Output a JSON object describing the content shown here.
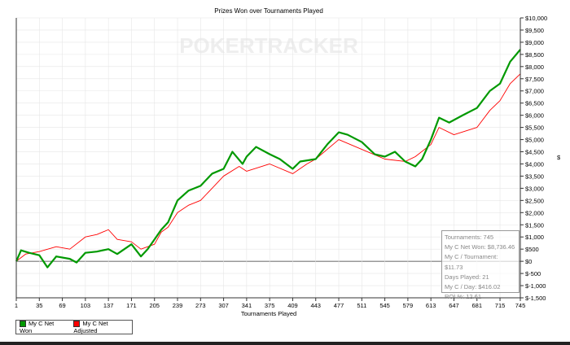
{
  "chart_data": {
    "type": "line",
    "title": "Prizes Won over Tournaments Played",
    "xlabel": "Tournaments Played",
    "ylabel": "$",
    "xlim": [
      1,
      745
    ],
    "ylim": [
      -1500,
      10000
    ],
    "x_ticks": [
      "1",
      "35",
      "69",
      "103",
      "137",
      "171",
      "205",
      "239",
      "273",
      "307",
      "341",
      "375",
      "409",
      "443",
      "477",
      "511",
      "545",
      "579",
      "613",
      "647",
      "681",
      "715",
      "745"
    ],
    "y_ticks": [
      "$-1,500",
      "$-1,000",
      "$-500",
      "$0",
      "$500",
      "$1,000",
      "$1,500",
      "$2,000",
      "$2,500",
      "$3,000",
      "$3,500",
      "$4,000",
      "$4,500",
      "$5,000",
      "$5,500",
      "$6,000",
      "$6,500",
      "$7,000",
      "$7,500",
      "$8,000",
      "$8,500",
      "$9,000",
      "$9,500",
      "$10,000"
    ],
    "grid": true,
    "legend_placement": "bottom-left",
    "series": [
      {
        "name": "My C Net Adjusted",
        "color": "#ff0000",
        "points": [
          [
            1,
            0
          ],
          [
            15,
            300
          ],
          [
            35,
            400
          ],
          [
            60,
            600
          ],
          [
            80,
            500
          ],
          [
            103,
            1000
          ],
          [
            120,
            1100
          ],
          [
            137,
            1300
          ],
          [
            150,
            900
          ],
          [
            171,
            800
          ],
          [
            185,
            500
          ],
          [
            205,
            700
          ],
          [
            215,
            1200
          ],
          [
            225,
            1400
          ],
          [
            239,
            2000
          ],
          [
            255,
            2300
          ],
          [
            273,
            2500
          ],
          [
            290,
            3000
          ],
          [
            307,
            3500
          ],
          [
            330,
            3900
          ],
          [
            341,
            3700
          ],
          [
            375,
            4000
          ],
          [
            409,
            3600
          ],
          [
            430,
            4000
          ],
          [
            443,
            4200
          ],
          [
            477,
            5000
          ],
          [
            511,
            4600
          ],
          [
            545,
            4200
          ],
          [
            575,
            4100
          ],
          [
            590,
            4300
          ],
          [
            613,
            4800
          ],
          [
            625,
            5500
          ],
          [
            647,
            5200
          ],
          [
            681,
            5500
          ],
          [
            700,
            6200
          ],
          [
            715,
            6600
          ],
          [
            730,
            7300
          ],
          [
            745,
            7700
          ]
        ]
      },
      {
        "name": "My C Net Won",
        "color": "#009900",
        "points": [
          [
            1,
            0
          ],
          [
            8,
            450
          ],
          [
            20,
            350
          ],
          [
            35,
            250
          ],
          [
            47,
            -250
          ],
          [
            60,
            200
          ],
          [
            80,
            100
          ],
          [
            90,
            -50
          ],
          [
            103,
            350
          ],
          [
            120,
            400
          ],
          [
            137,
            500
          ],
          [
            150,
            300
          ],
          [
            171,
            700
          ],
          [
            185,
            200
          ],
          [
            195,
            500
          ],
          [
            205,
            900
          ],
          [
            215,
            1300
          ],
          [
            225,
            1600
          ],
          [
            239,
            2500
          ],
          [
            255,
            2900
          ],
          [
            273,
            3100
          ],
          [
            290,
            3600
          ],
          [
            307,
            3800
          ],
          [
            320,
            4500
          ],
          [
            335,
            4000
          ],
          [
            341,
            4300
          ],
          [
            355,
            4700
          ],
          [
            375,
            4400
          ],
          [
            390,
            4200
          ],
          [
            409,
            3800
          ],
          [
            420,
            4100
          ],
          [
            443,
            4200
          ],
          [
            460,
            4800
          ],
          [
            477,
            5300
          ],
          [
            490,
            5200
          ],
          [
            511,
            4900
          ],
          [
            530,
            4400
          ],
          [
            545,
            4300
          ],
          [
            560,
            4500
          ],
          [
            575,
            4100
          ],
          [
            590,
            3900
          ],
          [
            600,
            4200
          ],
          [
            613,
            5000
          ],
          [
            625,
            5900
          ],
          [
            640,
            5700
          ],
          [
            660,
            6000
          ],
          [
            681,
            6300
          ],
          [
            700,
            7000
          ],
          [
            715,
            7300
          ],
          [
            730,
            8200
          ],
          [
            745,
            8700
          ]
        ]
      }
    ]
  },
  "watermark": "POKERTRACKER",
  "stats": {
    "tournaments": "Tournaments: 745",
    "net_won": "My C Net Won: $8,736.46",
    "per_tournament": "My C / Tournament: $11.73",
    "days": "Days Played: 21",
    "per_day": "My C / Day: $416.02",
    "roi": "ROI %: 12.61"
  }
}
